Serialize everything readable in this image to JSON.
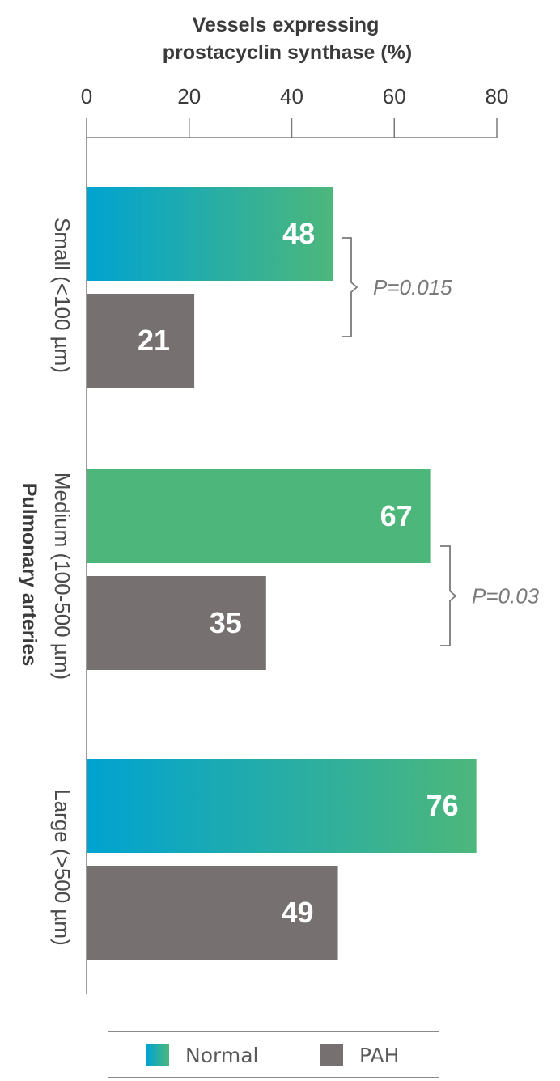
{
  "chart_data": {
    "type": "bar",
    "orientation": "horizontal",
    "title": "Vessels expressing prostacyclin synthase (%)",
    "title_lines": [
      "Vessels expressing",
      "prostacyclin synthase (%)"
    ],
    "xlabel": "Vessels expressing prostacyclin synthase (%)",
    "ylabel": "Pulmonary arteries",
    "xlim": [
      0,
      80
    ],
    "xticks": [
      0,
      20,
      40,
      60,
      80
    ],
    "xtick_labels": [
      "0",
      "20",
      "40",
      "60",
      "80"
    ],
    "categories": [
      "Small (<100 µm)",
      "Medium (100-500 µm)",
      "Large (>500 µm)"
    ],
    "series": [
      {
        "name": "Normal",
        "values": [
          48,
          67,
          76
        ],
        "labels": [
          "48",
          "67",
          "76"
        ],
        "color": "#45b583",
        "gradient_start": "#00a3d1",
        "gradient_end": "#4db77b"
      },
      {
        "name": "PAH",
        "values": [
          21,
          35,
          49
        ],
        "labels": [
          "21",
          "35",
          "49"
        ],
        "color": "#777070"
      }
    ],
    "annotations": [
      {
        "category": "Small (<100 µm)",
        "text": "P=0.015"
      },
      {
        "category": "Medium (100-500 µm)",
        "text": "P=0.03"
      }
    ],
    "grid": false,
    "legend_position": "bottom"
  },
  "legend": {
    "items": [
      {
        "label": "Normal",
        "color": "#2aaea0"
      },
      {
        "label": "PAH",
        "color": "#777070"
      }
    ]
  }
}
